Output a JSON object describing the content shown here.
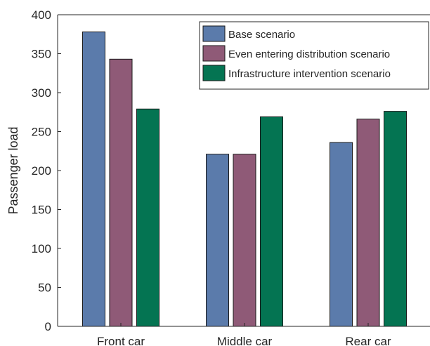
{
  "chart_data": {
    "type": "bar",
    "title": "",
    "xlabel": "",
    "ylabel": "Passenger load",
    "ylim": [
      0,
      400
    ],
    "yticks": [
      0,
      50,
      100,
      150,
      200,
      250,
      300,
      350,
      400
    ],
    "categories": [
      "Front car",
      "Middle car",
      "Rear car"
    ],
    "series": [
      {
        "name": "Base scenario",
        "values": [
          378,
          221,
          236
        ],
        "color": "#5b7bab"
      },
      {
        "name": "Even entering distribution scenario",
        "values": [
          343,
          221,
          266
        ],
        "color": "#8f5a77"
      },
      {
        "name": "Infrastructure intervention scenario",
        "values": [
          279,
          269,
          276
        ],
        "color": "#047452"
      }
    ],
    "grid": false,
    "legend": "top-right"
  }
}
